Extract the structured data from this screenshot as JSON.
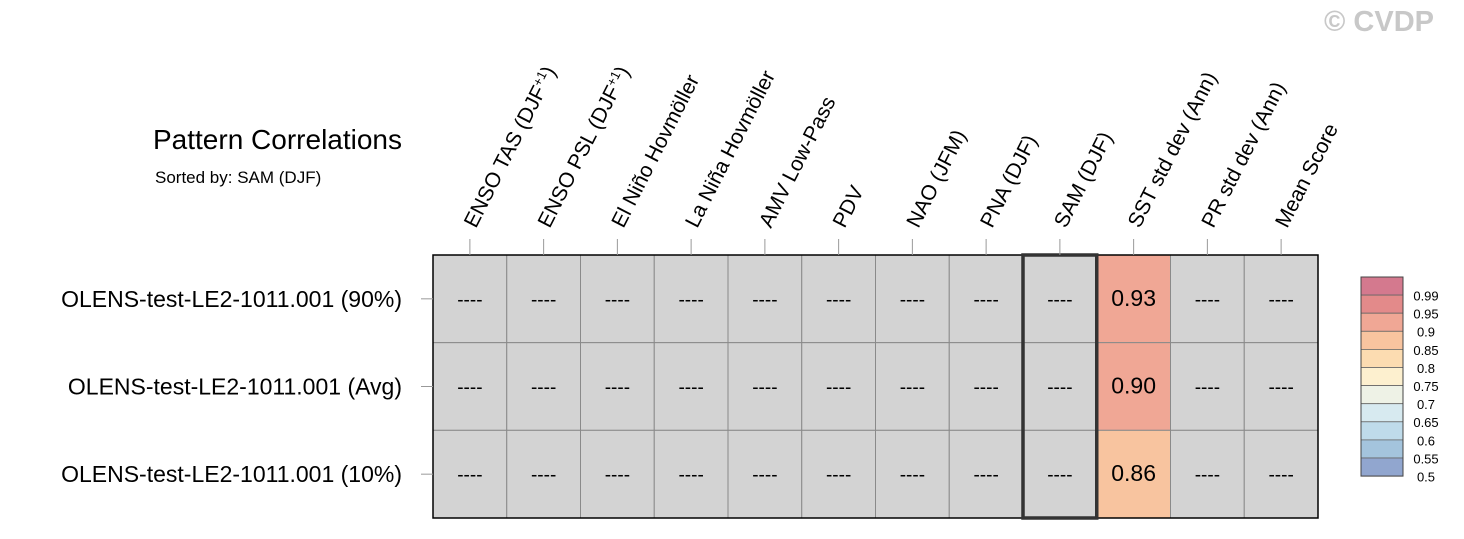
{
  "title": "Pattern Correlations",
  "subtitle": "Sorted by: SAM (DJF)",
  "watermark": "© CVDP",
  "chart_data": {
    "type": "heatmap",
    "columns": [
      {
        "label": "ENSO TAS (DJF",
        "sup": "+1",
        "tail": ")"
      },
      {
        "label": "ENSO PSL (DJF",
        "sup": "+1",
        "tail": ")"
      },
      {
        "label": "El Niño Hovmöller"
      },
      {
        "label": "La Niña Hovmöller"
      },
      {
        "label": "AMV Low-Pass"
      },
      {
        "label": "PDV"
      },
      {
        "label": "NAO (JFM)"
      },
      {
        "label": "PNA (DJF)"
      },
      {
        "label": "SAM (DJF)"
      },
      {
        "label": "SST std dev (Ann)"
      },
      {
        "label": "PR std dev (Ann)"
      },
      {
        "label": "Mean Score"
      }
    ],
    "rows": [
      "OLENS-test-LE2-1011.001 (90%)",
      "OLENS-test-LE2-1011.001 (Avg)",
      "OLENS-test-LE2-1011.001 (10%)"
    ],
    "values": [
      [
        null,
        null,
        null,
        null,
        null,
        null,
        null,
        null,
        null,
        0.93,
        null,
        null
      ],
      [
        null,
        null,
        null,
        null,
        null,
        null,
        null,
        null,
        null,
        0.9,
        null,
        null
      ],
      [
        null,
        null,
        null,
        null,
        null,
        null,
        null,
        null,
        null,
        0.86,
        null,
        null
      ]
    ],
    "cell_labels": [
      [
        "----",
        "----",
        "----",
        "----",
        "----",
        "----",
        "----",
        "----",
        "----",
        "0.93",
        "----",
        "----"
      ],
      [
        "----",
        "----",
        "----",
        "----",
        "----",
        "----",
        "----",
        "----",
        "----",
        "0.90",
        "----",
        "----"
      ],
      [
        "----",
        "----",
        "----",
        "----",
        "----",
        "----",
        "----",
        "----",
        "----",
        "0.86",
        "----",
        "----"
      ]
    ],
    "missing_label": "----",
    "sorted_column": "SAM (DJF)",
    "missing_color": "#d3d3d3",
    "colorbar": {
      "labels": [
        "0.99",
        "0.95",
        "0.9",
        "0.85",
        "0.8",
        "0.75",
        "0.7",
        "0.65",
        "0.6",
        "0.55",
        "0.5"
      ],
      "colors": [
        "#d4798e",
        "#e38a8a",
        "#f0a795",
        "#f8c49f",
        "#fcdcb1",
        "#fdf0cf",
        "#eef2e6",
        "#d7eaf0",
        "#bfdbea",
        "#a4c4dd",
        "#91a6cf"
      ],
      "thresholds": [
        0.99,
        0.95,
        0.9,
        0.85,
        0.8,
        0.75,
        0.7,
        0.65,
        0.6,
        0.55,
        0.5
      ]
    }
  }
}
